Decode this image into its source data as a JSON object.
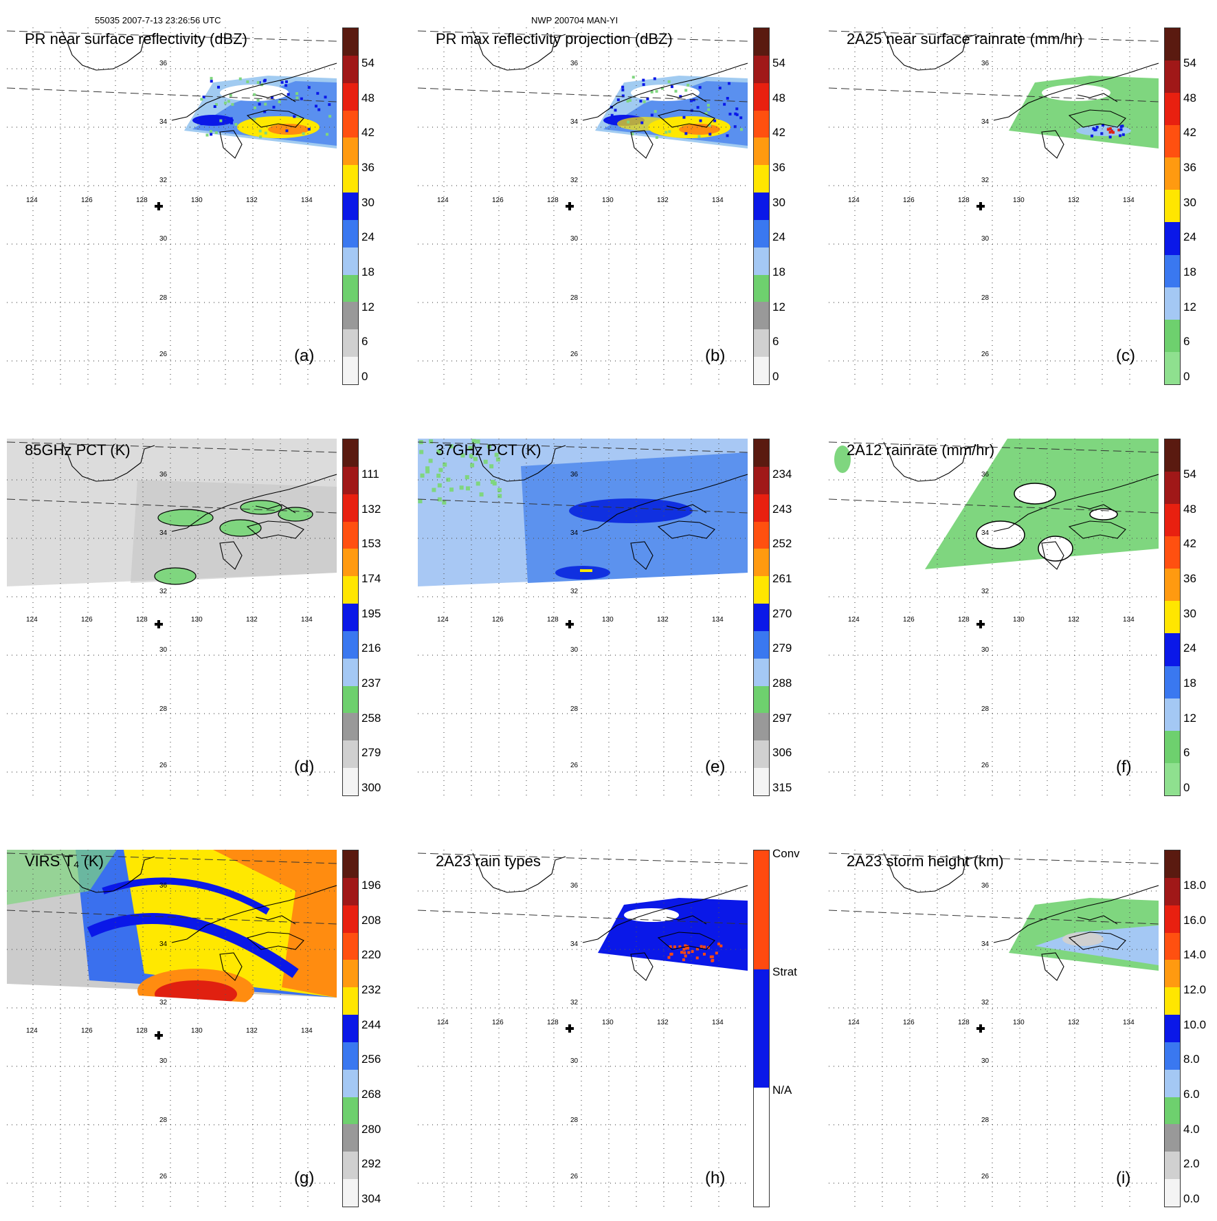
{
  "header": {
    "left": "55035 2007-7-13 23:26:56 UTC",
    "center": "NWP 200704 MAN-YI"
  },
  "axes": {
    "lon_labels": [
      "124",
      "126",
      "128",
      "130",
      "132",
      "134"
    ],
    "lat_labels": [
      "26",
      "28",
      "30",
      "32",
      "34",
      "36"
    ],
    "center_marker": "storm-center-cross"
  },
  "colors": {
    "land_outline": "#000000",
    "grid": "#555555",
    "green": "#7fd67f",
    "lightblue": "#9cc8f0",
    "blue": "#0a18e8",
    "yellow": "#ffe800",
    "orange": "#ff8c10",
    "red": "#e02010"
  },
  "panels": [
    {
      "id": "a",
      "label": "(a)",
      "title": "PR near surface reflectivity (dBZ)",
      "ticks": [
        "54",
        "48",
        "42",
        "36",
        "30",
        "24",
        "18",
        "12",
        "6",
        "0"
      ],
      "cbar": [
        "#5a1a10",
        "#a01818",
        "#e82010",
        "#ff5010",
        "#ff9a10",
        "#ffe600",
        "#0a18e8",
        "#3a78f0",
        "#a4c8f4",
        "#6ed06e",
        "#999999",
        "#d0d0d0",
        "#f4f4f4"
      ]
    },
    {
      "id": "b",
      "label": "(b)",
      "title": "PR max reflectivity projection (dBZ)",
      "ticks": [
        "54",
        "48",
        "42",
        "36",
        "30",
        "24",
        "18",
        "12",
        "6",
        "0"
      ],
      "cbar": [
        "#5a1a10",
        "#a01818",
        "#e82010",
        "#ff5010",
        "#ff9a10",
        "#ffe600",
        "#0a18e8",
        "#3a78f0",
        "#a4c8f4",
        "#6ed06e",
        "#999999",
        "#d0d0d0",
        "#f4f4f4"
      ]
    },
    {
      "id": "c",
      "label": "(c)",
      "title": "2A25 near surface rainrate (mm/hr)",
      "ticks": [
        "54",
        "48",
        "42",
        "36",
        "30",
        "24",
        "18",
        "12",
        "6",
        "0"
      ],
      "cbar": [
        "#5a1a10",
        "#a01818",
        "#e82010",
        "#ff5010",
        "#ff9a10",
        "#ffe600",
        "#0a18e8",
        "#3a78f0",
        "#a4c8f4",
        "#6ed06e",
        "#8fe08f"
      ]
    },
    {
      "id": "d",
      "label": "(d)",
      "title": "85GHz PCT (K)",
      "ticks": [
        "111",
        "132",
        "153",
        "174",
        "195",
        "216",
        "237",
        "258",
        "279",
        "300"
      ],
      "cbar": [
        "#5a1a10",
        "#a01818",
        "#e82010",
        "#ff5010",
        "#ff9a10",
        "#ffe600",
        "#0a18e8",
        "#3a78f0",
        "#a4c8f4",
        "#6ed06e",
        "#999999",
        "#d0d0d0",
        "#f4f4f4"
      ]
    },
    {
      "id": "e",
      "label": "(e)",
      "title": "37GHz PCT (K)",
      "ticks": [
        "234",
        "243",
        "252",
        "261",
        "270",
        "279",
        "288",
        "297",
        "306",
        "315"
      ],
      "cbar": [
        "#5a1a10",
        "#a01818",
        "#e82010",
        "#ff5010",
        "#ff9a10",
        "#ffe600",
        "#0a18e8",
        "#3a78f0",
        "#a4c8f4",
        "#6ed06e",
        "#999999",
        "#d0d0d0",
        "#f4f4f4"
      ]
    },
    {
      "id": "f",
      "label": "(f)",
      "title": "2A12 rainrate (mm/hr)",
      "ticks": [
        "54",
        "48",
        "42",
        "36",
        "30",
        "24",
        "18",
        "12",
        "6",
        "0"
      ],
      "cbar": [
        "#5a1a10",
        "#a01818",
        "#e82010",
        "#ff5010",
        "#ff9a10",
        "#ffe600",
        "#0a18e8",
        "#3a78f0",
        "#a4c8f4",
        "#6ed06e",
        "#8fe08f"
      ]
    },
    {
      "id": "g",
      "label": "(g)",
      "title": "VIRS T₄ (K)",
      "ticks": [
        "196",
        "208",
        "220",
        "232",
        "244",
        "256",
        "268",
        "280",
        "292",
        "304"
      ],
      "cbar": [
        "#5a1a10",
        "#a01818",
        "#e82010",
        "#ff5010",
        "#ff9a10",
        "#ffe600",
        "#0a18e8",
        "#3a78f0",
        "#a4c8f4",
        "#6ed06e",
        "#999999",
        "#d0d0d0",
        "#f4f4f4"
      ]
    },
    {
      "id": "h",
      "label": "(h)",
      "title": "2A23 rain types",
      "ticks": [
        "Conv",
        "Strat",
        "N/A"
      ],
      "cbar": [
        "#ff4a10",
        "#0a18e8",
        "#ffffff"
      ]
    },
    {
      "id": "i",
      "label": "(i)",
      "title": "2A23 storm height (km)",
      "ticks": [
        "18.0",
        "16.0",
        "14.0",
        "12.0",
        "10.0",
        "8.0",
        "6.0",
        "4.0",
        "2.0",
        "0.0"
      ],
      "cbar": [
        "#5a1a10",
        "#a01818",
        "#e82010",
        "#ff5010",
        "#ff9a10",
        "#ffe600",
        "#0a18e8",
        "#3a78f0",
        "#a4c8f4",
        "#6ed06e",
        "#999999",
        "#d0d0d0",
        "#f4f4f4"
      ]
    }
  ]
}
